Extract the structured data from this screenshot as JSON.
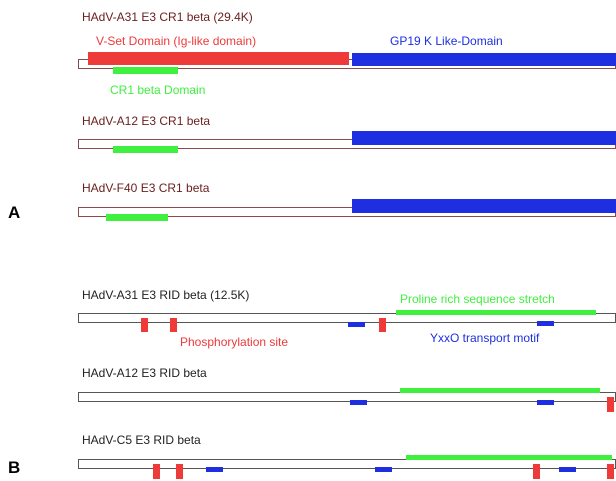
{
  "colors": {
    "red": "#ef3a3a",
    "blue": "#1d2fe0",
    "green": "#3ff03f",
    "title_a": "#6b2020",
    "title_b": "#222222"
  },
  "panel_a": {
    "label": "A",
    "domain_labels": {
      "vset": "V-Set Domain (Ig-like domain)",
      "gp19k": "GP19 K Like-Domain",
      "cr1beta": "CR1 beta Domain"
    },
    "rows": [
      {
        "title": "HAdV-A31 E3 CR1 beta (29.4K)"
      },
      {
        "title": "HAdV-A12 E3 CR1 beta"
      },
      {
        "title": "HAdV-F40 E3 CR1 beta"
      }
    ]
  },
  "panel_b": {
    "label": "B",
    "feature_labels": {
      "proline": "Proline rich sequence stretch",
      "phospho": "Phosphorylation site",
      "yxxo": "YxxO transport motif"
    },
    "rows": [
      {
        "title": "HAdV-A31 E3 RID beta (12.5K)"
      },
      {
        "title": "HAdV-A12 E3 RID beta"
      },
      {
        "title": "HAdV-C5 E3 RID beta"
      }
    ]
  }
}
